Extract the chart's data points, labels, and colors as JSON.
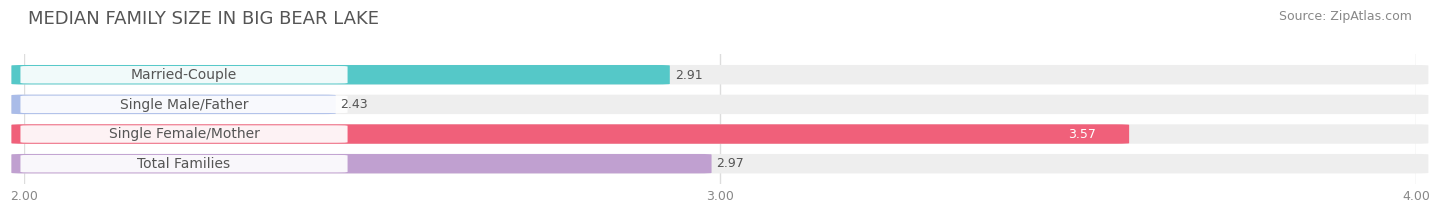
{
  "title": "MEDIAN FAMILY SIZE IN BIG BEAR LAKE",
  "source": "Source: ZipAtlas.com",
  "categories": [
    "Married-Couple",
    "Single Male/Father",
    "Single Female/Mother",
    "Total Families"
  ],
  "values": [
    2.91,
    2.43,
    3.57,
    2.97
  ],
  "bar_colors": [
    "#55C8C8",
    "#AABCE8",
    "#F0607A",
    "#C0A0D0"
  ],
  "xlim": [
    2.0,
    4.0
  ],
  "xticks": [
    2.0,
    3.0,
    4.0
  ],
  "xtick_labels": [
    "2.00",
    "3.00",
    "4.00"
  ],
  "bar_height": 0.62,
  "background_color": "#ffffff",
  "bar_bg_color": "#eeeeee",
  "title_fontsize": 13,
  "source_fontsize": 9,
  "label_fontsize": 10,
  "value_fontsize": 9,
  "tick_fontsize": 9,
  "label_text_color": "#555555",
  "value_text_color": "#555555",
  "title_color": "#555555",
  "source_color": "#888888"
}
